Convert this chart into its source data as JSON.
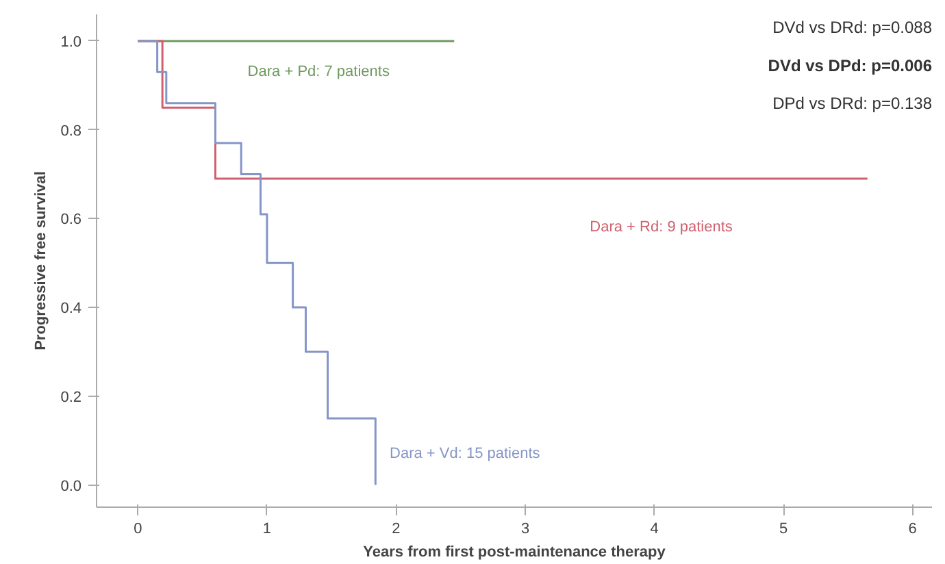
{
  "chart_data": {
    "type": "step",
    "xlabel": "Years from first post-maintenance therapy",
    "ylabel": "Progressive free survival",
    "xlim": [
      -0.32,
      6.15
    ],
    "ylim": [
      -0.05,
      1.06
    ],
    "xticks": [
      0,
      1,
      2,
      3,
      4,
      5,
      6
    ],
    "yticks": [
      {
        "value": 0,
        "label": "0.0"
      },
      {
        "value": 0.2,
        "label": "0.2"
      },
      {
        "value": 0.4,
        "label": "0.4"
      },
      {
        "value": 0.6,
        "label": "0.6"
      },
      {
        "value": 0.8,
        "label": "0.8"
      },
      {
        "value": 1,
        "label": "1.0"
      }
    ],
    "grid": false,
    "series": [
      {
        "name": "Dara + Pd: 7 patients",
        "color": "#6f9a5f",
        "x": [
          0,
          2.45
        ],
        "values": [
          1.0,
          1.0
        ]
      },
      {
        "name": "Dara + Rd: 9 patients",
        "color": "#d0606e",
        "x": [
          0,
          0.19,
          0.6,
          5.65
        ],
        "values": [
          1.0,
          0.85,
          0.69,
          0.69
        ]
      },
      {
        "name": "Dara + Vd: 15 patients",
        "color": "#8595c8",
        "x": [
          0,
          0.15,
          0.22,
          0.6,
          0.8,
          0.95,
          1.0,
          1.2,
          1.3,
          1.47,
          1.84
        ],
        "values": [
          1.0,
          0.93,
          0.86,
          0.77,
          0.7,
          0.61,
          0.5,
          0.4,
          0.3,
          0.15,
          0.0
        ]
      }
    ],
    "annotations": [
      "DVd vs DRd: p=0.088",
      "DVd vs DPd: p=0.006",
      "DPd vs DRd: p=0.138"
    ]
  }
}
